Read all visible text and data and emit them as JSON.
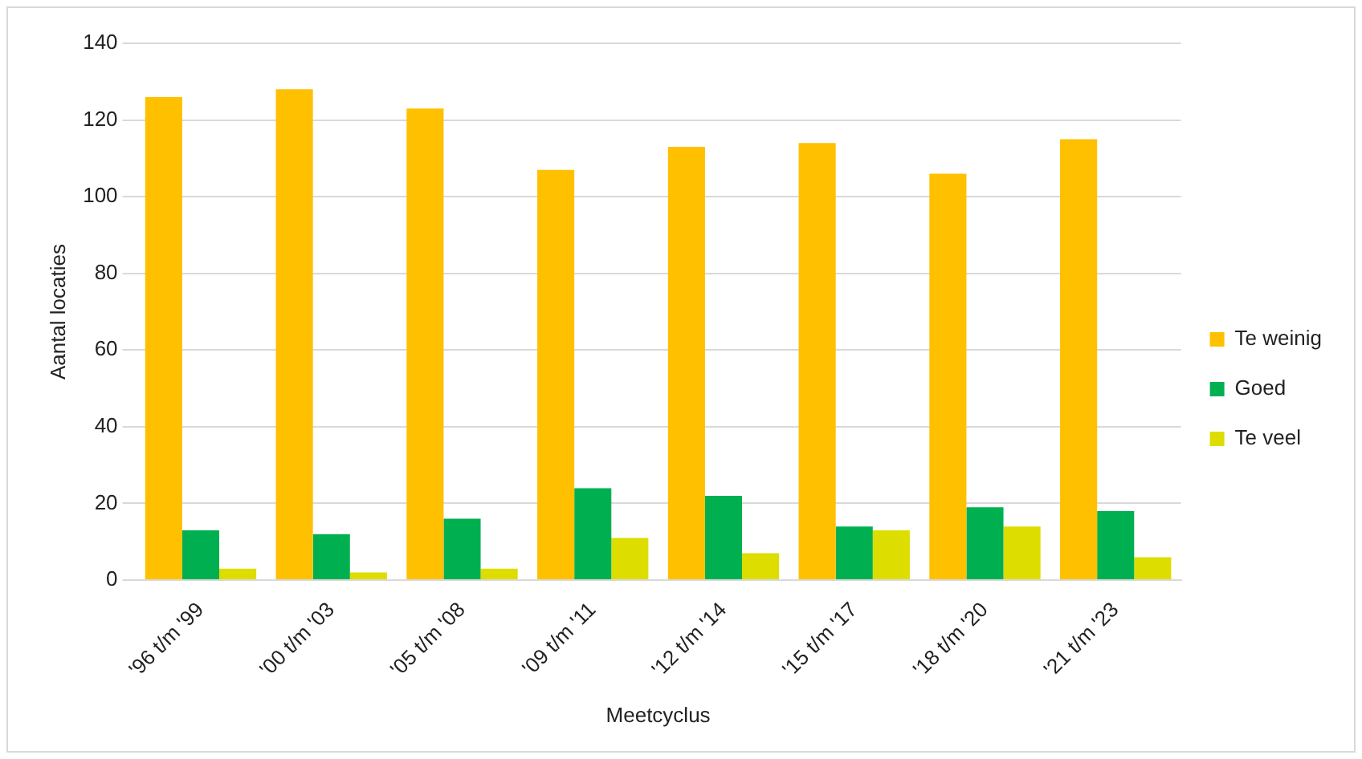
{
  "chart_data": {
    "type": "bar",
    "xlabel": "Meetcyclus",
    "ylabel": "Aantal locaties",
    "categories": [
      "'96 t/m '99",
      "'00 t/m '03",
      "'05 t/m '08",
      "'09 t/m '11",
      "'12 t/m '14",
      "'15 t/m '17",
      "'18 t/m '20",
      "'21 t/m '23"
    ],
    "series": [
      {
        "name": "Te weinig",
        "color": "#ffc000",
        "values": [
          126,
          128,
          123,
          107,
          113,
          114,
          106,
          115
        ]
      },
      {
        "name": "Goed",
        "color": "#00b050",
        "values": [
          13,
          12,
          16,
          24,
          22,
          14,
          19,
          18
        ]
      },
      {
        "name": "Te veel",
        "color": "#dddd00",
        "values": [
          3,
          2,
          3,
          11,
          7,
          13,
          14,
          6
        ]
      }
    ],
    "ylim": [
      0,
      140
    ],
    "yticks": [
      0,
      20,
      40,
      60,
      80,
      100,
      120,
      140
    ],
    "grid": "y",
    "legend": "right"
  }
}
